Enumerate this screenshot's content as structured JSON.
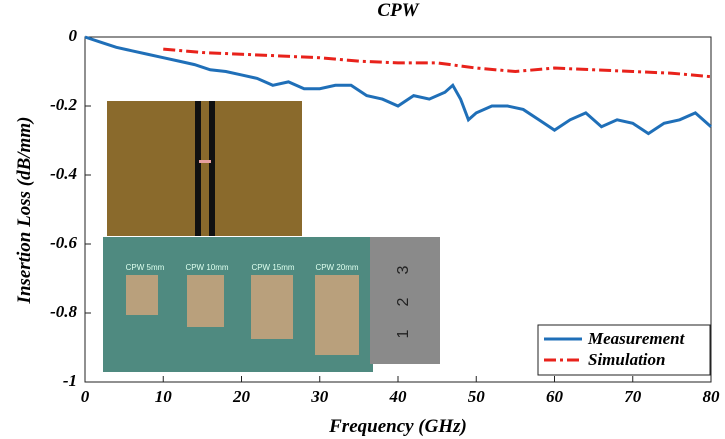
{
  "chart_data": {
    "type": "line",
    "title": "CPW",
    "x_label": "Frequency (GHz)",
    "y_label": "Insertion Loss (dB/mm)",
    "xlim": [
      0,
      80
    ],
    "ylim": [
      -1,
      0
    ],
    "xticks": [
      0,
      10,
      20,
      30,
      40,
      50,
      60,
      70,
      80
    ],
    "yticks": [
      0,
      -0.2,
      -0.4,
      -0.6,
      -0.8,
      -1
    ],
    "legend": "lower right",
    "series": [
      {
        "name": "Measurement",
        "color": "#1f6fb8",
        "style": "solid",
        "x": [
          0,
          2,
          4,
          6,
          8,
          10,
          12,
          14,
          16,
          18,
          20,
          22,
          24,
          26,
          28,
          30,
          32,
          34,
          36,
          38,
          40,
          42,
          44,
          46,
          47,
          48,
          49,
          50,
          52,
          54,
          56,
          58,
          60,
          62,
          64,
          66,
          68,
          70,
          72,
          74,
          76,
          78,
          80
        ],
        "values": [
          0,
          -0.015,
          -0.03,
          -0.04,
          -0.05,
          -0.06,
          -0.07,
          -0.08,
          -0.095,
          -0.1,
          -0.11,
          -0.12,
          -0.14,
          -0.13,
          -0.15,
          -0.15,
          -0.14,
          -0.14,
          -0.17,
          -0.18,
          -0.2,
          -0.17,
          -0.18,
          -0.16,
          -0.14,
          -0.18,
          -0.24,
          -0.22,
          -0.2,
          -0.2,
          -0.21,
          -0.24,
          -0.27,
          -0.24,
          -0.22,
          -0.26,
          -0.24,
          -0.25,
          -0.28,
          -0.25,
          -0.24,
          -0.22,
          -0.26
        ]
      },
      {
        "name": "Simulation",
        "color": "#e8221b",
        "style": "dashdot",
        "x": [
          10,
          15,
          20,
          25,
          30,
          35,
          40,
          45,
          50,
          55,
          60,
          65,
          70,
          75,
          80
        ],
        "values": [
          -0.035,
          -0.045,
          -0.05,
          -0.055,
          -0.06,
          -0.07,
          -0.075,
          -0.075,
          -0.09,
          -0.1,
          -0.09,
          -0.095,
          -0.1,
          -0.105,
          -0.115
        ]
      }
    ]
  },
  "insets": {
    "labels": [
      "CPW 5mm",
      "CPW 10mm",
      "CPW 15mm",
      "CPW 20mm"
    ],
    "ruler": [
      "3",
      "2",
      "1"
    ]
  }
}
